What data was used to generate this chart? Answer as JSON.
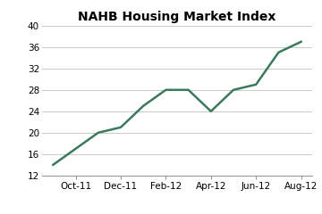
{
  "title": "NAHB Housing Market Index",
  "x_labels": [
    "Oct-11",
    "Dec-11",
    "Feb-12",
    "Apr-12",
    "Jun-12",
    "Aug-12"
  ],
  "x_values": [
    0,
    1,
    2,
    3,
    4,
    5,
    6,
    7,
    8,
    9,
    10,
    11
  ],
  "y_values": [
    14,
    17,
    20,
    21,
    25,
    28,
    28,
    24,
    28,
    29,
    35,
    37
  ],
  "x_tick_positions": [
    1,
    3,
    5,
    7,
    9,
    11
  ],
  "xlim": [
    -0.5,
    11.5
  ],
  "ylim": [
    12,
    40
  ],
  "yticks": [
    12,
    16,
    20,
    24,
    28,
    32,
    36,
    40
  ],
  "line_color": "#3a7a5a",
  "line_width": 1.8,
  "bg_color": "#ffffff",
  "plot_bg_color": "#ffffff",
  "grid_color": "#c8c8c8",
  "title_fontsize": 10,
  "tick_fontsize": 7.5
}
